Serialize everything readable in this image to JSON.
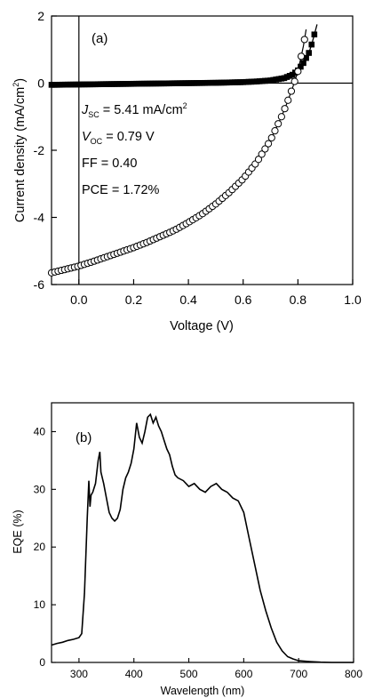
{
  "chart_data": [
    {
      "type": "scatter",
      "panel_label": "(a)",
      "xlabel": "Voltage (V)",
      "ylabel_main": "Current density (mA/cm",
      "ylabel_sup": "2",
      "ylabel_close": ")",
      "xlim": [
        -0.1,
        1.0
      ],
      "ylim": [
        -6,
        2
      ],
      "xticks": [
        0.0,
        0.2,
        0.4,
        0.6,
        0.8,
        1.0
      ],
      "xtick_labels": [
        "0.0",
        "0.2",
        "0.4",
        "0.6",
        "0.8",
        "1.0"
      ],
      "yticks": [
        -6,
        -4,
        -2,
        0,
        2
      ],
      "ytick_labels": [
        "-6",
        "-4",
        "-2",
        "0",
        "2"
      ],
      "annotations": {
        "jsc_symbol": "J",
        "jsc_sub": "SC",
        "jsc_value": " = 5.41 mA/cm",
        "jsc_sup": "2",
        "voc_symbol": "V",
        "voc_sub": "OC",
        "voc_value": " = 0.79 V",
        "ff": "FF = 0.40",
        "pce": "PCE = 1.72%"
      },
      "series": [
        {
          "marker": "filled-square",
          "x": [
            -0.1,
            0.0,
            0.1,
            0.2,
            0.3,
            0.4,
            0.5,
            0.6,
            0.65,
            0.7,
            0.75,
            0.78,
            0.8,
            0.82,
            0.84,
            0.85,
            0.86,
            0.87
          ],
          "y": [
            -0.05,
            -0.04,
            -0.03,
            -0.02,
            -0.01,
            0.0,
            0.01,
            0.03,
            0.05,
            0.08,
            0.15,
            0.25,
            0.38,
            0.6,
            0.9,
            1.15,
            1.45,
            1.75
          ]
        },
        {
          "marker": "open-circle",
          "x": [
            -0.1,
            -0.05,
            0.0,
            0.05,
            0.1,
            0.15,
            0.2,
            0.25,
            0.3,
            0.35,
            0.4,
            0.45,
            0.5,
            0.55,
            0.6,
            0.65,
            0.7,
            0.72,
            0.74,
            0.76,
            0.78,
            0.8,
            0.82,
            0.83
          ],
          "y": [
            -5.65,
            -5.55,
            -5.45,
            -5.32,
            -5.18,
            -5.04,
            -4.9,
            -4.74,
            -4.56,
            -4.38,
            -4.15,
            -3.9,
            -3.6,
            -3.25,
            -2.85,
            -2.35,
            -1.7,
            -1.35,
            -1.0,
            -0.6,
            -0.15,
            0.35,
            1.1,
            1.6
          ]
        }
      ]
    },
    {
      "type": "line",
      "panel_label": "(b)",
      "xlabel": "Wavelength (nm)",
      "ylabel": "EQE (%)",
      "xlim": [
        250,
        800
      ],
      "ylim": [
        0,
        45
      ],
      "xticks": [
        300,
        400,
        500,
        600,
        700,
        800
      ],
      "xtick_labels": [
        "300",
        "400",
        "500",
        "600",
        "700",
        "800"
      ],
      "yticks": [
        0,
        10,
        20,
        30,
        40
      ],
      "ytick_labels": [
        "0",
        "10",
        "20",
        "30",
        "40"
      ],
      "series": [
        {
          "x": [
            250,
            260,
            270,
            280,
            290,
            300,
            305,
            310,
            315,
            318,
            320,
            322,
            325,
            330,
            335,
            338,
            340,
            345,
            350,
            355,
            360,
            365,
            370,
            375,
            380,
            385,
            390,
            395,
            400,
            405,
            410,
            415,
            420,
            425,
            430,
            435,
            440,
            445,
            450,
            455,
            460,
            465,
            470,
            475,
            480,
            490,
            500,
            510,
            520,
            530,
            540,
            550,
            560,
            570,
            580,
            590,
            600,
            610,
            620,
            630,
            640,
            650,
            660,
            670,
            680,
            690,
            700,
            720,
            740,
            760,
            780,
            800
          ],
          "y": [
            3.0,
            3.3,
            3.5,
            3.8,
            4.0,
            4.3,
            5.0,
            12.0,
            25.0,
            31.5,
            27.0,
            29.0,
            29.5,
            31.0,
            35.0,
            36.5,
            33.0,
            31.0,
            28.5,
            26.0,
            25.0,
            24.5,
            25.0,
            26.5,
            30.0,
            32.0,
            33.0,
            34.5,
            37.0,
            41.5,
            39.0,
            38.0,
            40.0,
            42.5,
            43.0,
            41.5,
            42.5,
            41.0,
            40.0,
            38.5,
            37.0,
            36.0,
            34.0,
            32.5,
            32.0,
            31.5,
            30.5,
            31.0,
            30.0,
            29.5,
            30.5,
            31.0,
            30.0,
            29.5,
            28.5,
            28.0,
            26.0,
            21.5,
            17.0,
            12.5,
            9.0,
            6.0,
            3.5,
            2.0,
            1.0,
            0.6,
            0.3,
            0.15,
            0.05,
            0.0,
            0.0,
            0.0
          ]
        }
      ]
    }
  ]
}
